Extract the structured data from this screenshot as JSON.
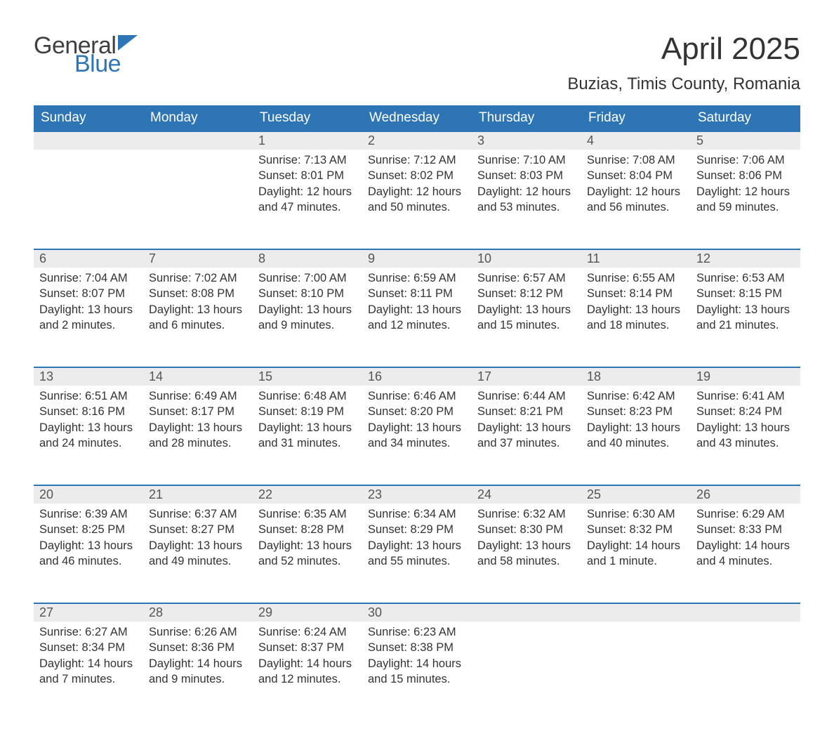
{
  "logo": {
    "word1": "General",
    "word2": "Blue"
  },
  "title": "April 2025",
  "location": "Buzias, Timis County, Romania",
  "colors": {
    "header_bg": "#2e75b6",
    "header_text": "#ffffff",
    "daynum_bg": "#ececec",
    "daynum_border": "#2e75b6",
    "body_text": "#333333",
    "logo_gray": "#404040",
    "logo_blue": "#2e75b6"
  },
  "day_names": [
    "Sunday",
    "Monday",
    "Tuesday",
    "Wednesday",
    "Thursday",
    "Friday",
    "Saturday"
  ],
  "weeks": [
    [
      {
        "n": "",
        "lines": []
      },
      {
        "n": "",
        "lines": []
      },
      {
        "n": "1",
        "lines": [
          "Sunrise: 7:13 AM",
          "Sunset: 8:01 PM",
          "Daylight: 12 hours and 47 minutes."
        ]
      },
      {
        "n": "2",
        "lines": [
          "Sunrise: 7:12 AM",
          "Sunset: 8:02 PM",
          "Daylight: 12 hours and 50 minutes."
        ]
      },
      {
        "n": "3",
        "lines": [
          "Sunrise: 7:10 AM",
          "Sunset: 8:03 PM",
          "Daylight: 12 hours and 53 minutes."
        ]
      },
      {
        "n": "4",
        "lines": [
          "Sunrise: 7:08 AM",
          "Sunset: 8:04 PM",
          "Daylight: 12 hours and 56 minutes."
        ]
      },
      {
        "n": "5",
        "lines": [
          "Sunrise: 7:06 AM",
          "Sunset: 8:06 PM",
          "Daylight: 12 hours and 59 minutes."
        ]
      }
    ],
    [
      {
        "n": "6",
        "lines": [
          "Sunrise: 7:04 AM",
          "Sunset: 8:07 PM",
          "Daylight: 13 hours and 2 minutes."
        ]
      },
      {
        "n": "7",
        "lines": [
          "Sunrise: 7:02 AM",
          "Sunset: 8:08 PM",
          "Daylight: 13 hours and 6 minutes."
        ]
      },
      {
        "n": "8",
        "lines": [
          "Sunrise: 7:00 AM",
          "Sunset: 8:10 PM",
          "Daylight: 13 hours and 9 minutes."
        ]
      },
      {
        "n": "9",
        "lines": [
          "Sunrise: 6:59 AM",
          "Sunset: 8:11 PM",
          "Daylight: 13 hours and 12 minutes."
        ]
      },
      {
        "n": "10",
        "lines": [
          "Sunrise: 6:57 AM",
          "Sunset: 8:12 PM",
          "Daylight: 13 hours and 15 minutes."
        ]
      },
      {
        "n": "11",
        "lines": [
          "Sunrise: 6:55 AM",
          "Sunset: 8:14 PM",
          "Daylight: 13 hours and 18 minutes."
        ]
      },
      {
        "n": "12",
        "lines": [
          "Sunrise: 6:53 AM",
          "Sunset: 8:15 PM",
          "Daylight: 13 hours and 21 minutes."
        ]
      }
    ],
    [
      {
        "n": "13",
        "lines": [
          "Sunrise: 6:51 AM",
          "Sunset: 8:16 PM",
          "Daylight: 13 hours and 24 minutes."
        ]
      },
      {
        "n": "14",
        "lines": [
          "Sunrise: 6:49 AM",
          "Sunset: 8:17 PM",
          "Daylight: 13 hours and 28 minutes."
        ]
      },
      {
        "n": "15",
        "lines": [
          "Sunrise: 6:48 AM",
          "Sunset: 8:19 PM",
          "Daylight: 13 hours and 31 minutes."
        ]
      },
      {
        "n": "16",
        "lines": [
          "Sunrise: 6:46 AM",
          "Sunset: 8:20 PM",
          "Daylight: 13 hours and 34 minutes."
        ]
      },
      {
        "n": "17",
        "lines": [
          "Sunrise: 6:44 AM",
          "Sunset: 8:21 PM",
          "Daylight: 13 hours and 37 minutes."
        ]
      },
      {
        "n": "18",
        "lines": [
          "Sunrise: 6:42 AM",
          "Sunset: 8:23 PM",
          "Daylight: 13 hours and 40 minutes."
        ]
      },
      {
        "n": "19",
        "lines": [
          "Sunrise: 6:41 AM",
          "Sunset: 8:24 PM",
          "Daylight: 13 hours and 43 minutes."
        ]
      }
    ],
    [
      {
        "n": "20",
        "lines": [
          "Sunrise: 6:39 AM",
          "Sunset: 8:25 PM",
          "Daylight: 13 hours and 46 minutes."
        ]
      },
      {
        "n": "21",
        "lines": [
          "Sunrise: 6:37 AM",
          "Sunset: 8:27 PM",
          "Daylight: 13 hours and 49 minutes."
        ]
      },
      {
        "n": "22",
        "lines": [
          "Sunrise: 6:35 AM",
          "Sunset: 8:28 PM",
          "Daylight: 13 hours and 52 minutes."
        ]
      },
      {
        "n": "23",
        "lines": [
          "Sunrise: 6:34 AM",
          "Sunset: 8:29 PM",
          "Daylight: 13 hours and 55 minutes."
        ]
      },
      {
        "n": "24",
        "lines": [
          "Sunrise: 6:32 AM",
          "Sunset: 8:30 PM",
          "Daylight: 13 hours and 58 minutes."
        ]
      },
      {
        "n": "25",
        "lines": [
          "Sunrise: 6:30 AM",
          "Sunset: 8:32 PM",
          "Daylight: 14 hours and 1 minute."
        ]
      },
      {
        "n": "26",
        "lines": [
          "Sunrise: 6:29 AM",
          "Sunset: 8:33 PM",
          "Daylight: 14 hours and 4 minutes."
        ]
      }
    ],
    [
      {
        "n": "27",
        "lines": [
          "Sunrise: 6:27 AM",
          "Sunset: 8:34 PM",
          "Daylight: 14 hours and 7 minutes."
        ]
      },
      {
        "n": "28",
        "lines": [
          "Sunrise: 6:26 AM",
          "Sunset: 8:36 PM",
          "Daylight: 14 hours and 9 minutes."
        ]
      },
      {
        "n": "29",
        "lines": [
          "Sunrise: 6:24 AM",
          "Sunset: 8:37 PM",
          "Daylight: 14 hours and 12 minutes."
        ]
      },
      {
        "n": "30",
        "lines": [
          "Sunrise: 6:23 AM",
          "Sunset: 8:38 PM",
          "Daylight: 14 hours and 15 minutes."
        ]
      },
      {
        "n": "",
        "lines": []
      },
      {
        "n": "",
        "lines": []
      },
      {
        "n": "",
        "lines": []
      }
    ]
  ]
}
